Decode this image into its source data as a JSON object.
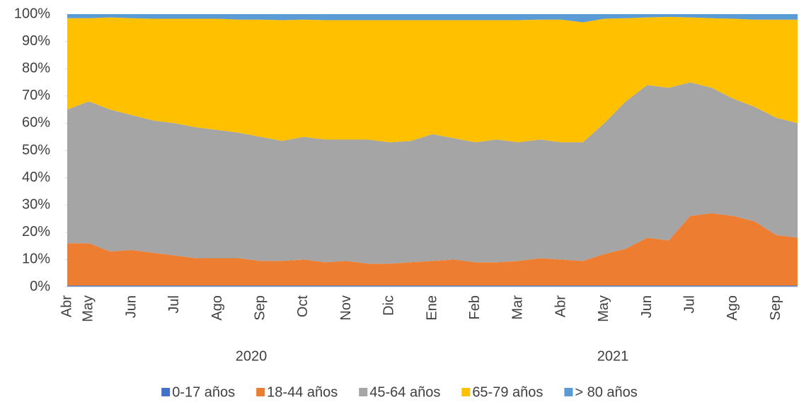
{
  "chart_data": {
    "type": "stacked_area_percent",
    "categories": [
      "Abr",
      "May",
      null,
      "Jun",
      null,
      "Jul",
      null,
      "Ago",
      null,
      "Sep",
      null,
      "Oct",
      null,
      "Nov",
      null,
      "Dic",
      null,
      "Ene",
      null,
      "Feb",
      null,
      "Mar",
      null,
      "Abr",
      null,
      "May",
      null,
      "Jun",
      null,
      "Jul",
      null,
      "Ago",
      null,
      "Sep",
      null
    ],
    "year_labels": [
      "2020",
      "2021"
    ],
    "ylim": [
      0,
      100
    ],
    "yticks": [
      {
        "value": 0,
        "label": "0%"
      },
      {
        "value": 10,
        "label": "10%"
      },
      {
        "value": 20,
        "label": "20%"
      },
      {
        "value": 30,
        "label": "30%"
      },
      {
        "value": 40,
        "label": "40%"
      },
      {
        "value": 50,
        "label": "50%"
      },
      {
        "value": 60,
        "label": "60%"
      },
      {
        "value": 70,
        "label": "70%"
      },
      {
        "value": 80,
        "label": "80%"
      },
      {
        "value": 90,
        "label": "90%"
      },
      {
        "value": 100,
        "label": "100%"
      }
    ],
    "series": [
      {
        "name": "0-17 años",
        "color": "#4472c4",
        "values": [
          0.5,
          0.5,
          0.5,
          0.5,
          0.5,
          0.5,
          0.5,
          0.5,
          0.5,
          0.5,
          0.5,
          0.5,
          0.5,
          0.5,
          0.5,
          0.5,
          0.5,
          0.5,
          0.5,
          0.5,
          0.5,
          0.5,
          0.5,
          0.5,
          0.5,
          0.5,
          0.5,
          0.5,
          0.5,
          0.5,
          0.5,
          0.5,
          0.5,
          0.5,
          0.5
        ]
      },
      {
        "name": "18-44 años",
        "color": "#ed7d31",
        "values": [
          15.5,
          15.5,
          12.5,
          13,
          12,
          11,
          10,
          10,
          10,
          9,
          9,
          9.5,
          8.5,
          9,
          8,
          8,
          8.5,
          9,
          9.5,
          8.5,
          8.5,
          9,
          10,
          9.5,
          9,
          11.5,
          13.5,
          17.5,
          16.5,
          25.5,
          26.5,
          25.5,
          23.5,
          18.5,
          17.5
        ]
      },
      {
        "name": "45-64 años",
        "color": "#a5a5a5",
        "values": [
          49,
          52,
          52,
          49.5,
          48.5,
          48.5,
          48,
          47,
          46,
          45.5,
          44,
          45,
          45,
          44.5,
          45.5,
          44.5,
          44.5,
          46.5,
          44.5,
          44,
          45,
          43.5,
          43.5,
          43,
          43.5,
          48,
          54,
          56,
          56,
          49,
          46,
          43,
          42,
          43,
          42
        ]
      },
      {
        "name": "65-79 años",
        "color": "#ffc000",
        "values": [
          33.5,
          30.5,
          33.8,
          35.5,
          37.3,
          38.3,
          39.8,
          40.8,
          41.5,
          43,
          44.3,
          43,
          43.8,
          43.8,
          43.8,
          44.8,
          44.3,
          41.8,
          43.3,
          44.8,
          43.8,
          44.8,
          44,
          45,
          44,
          38.3,
          30.5,
          24.8,
          26,
          23.8,
          25.5,
          29.3,
          32,
          36,
          38
        ]
      },
      {
        "name": "> 80 años",
        "color": "#5b9bd5",
        "values": [
          1.5,
          1.5,
          1.2,
          1.5,
          1.7,
          1.7,
          1.7,
          1.7,
          2,
          2,
          2.2,
          2,
          2.2,
          2.2,
          2.2,
          2.2,
          2.2,
          2.2,
          2.2,
          2.2,
          2.2,
          2.2,
          2,
          2,
          3,
          1.7,
          1.5,
          1.2,
          1,
          1.2,
          1.5,
          1.7,
          2,
          2,
          2
        ]
      }
    ]
  }
}
